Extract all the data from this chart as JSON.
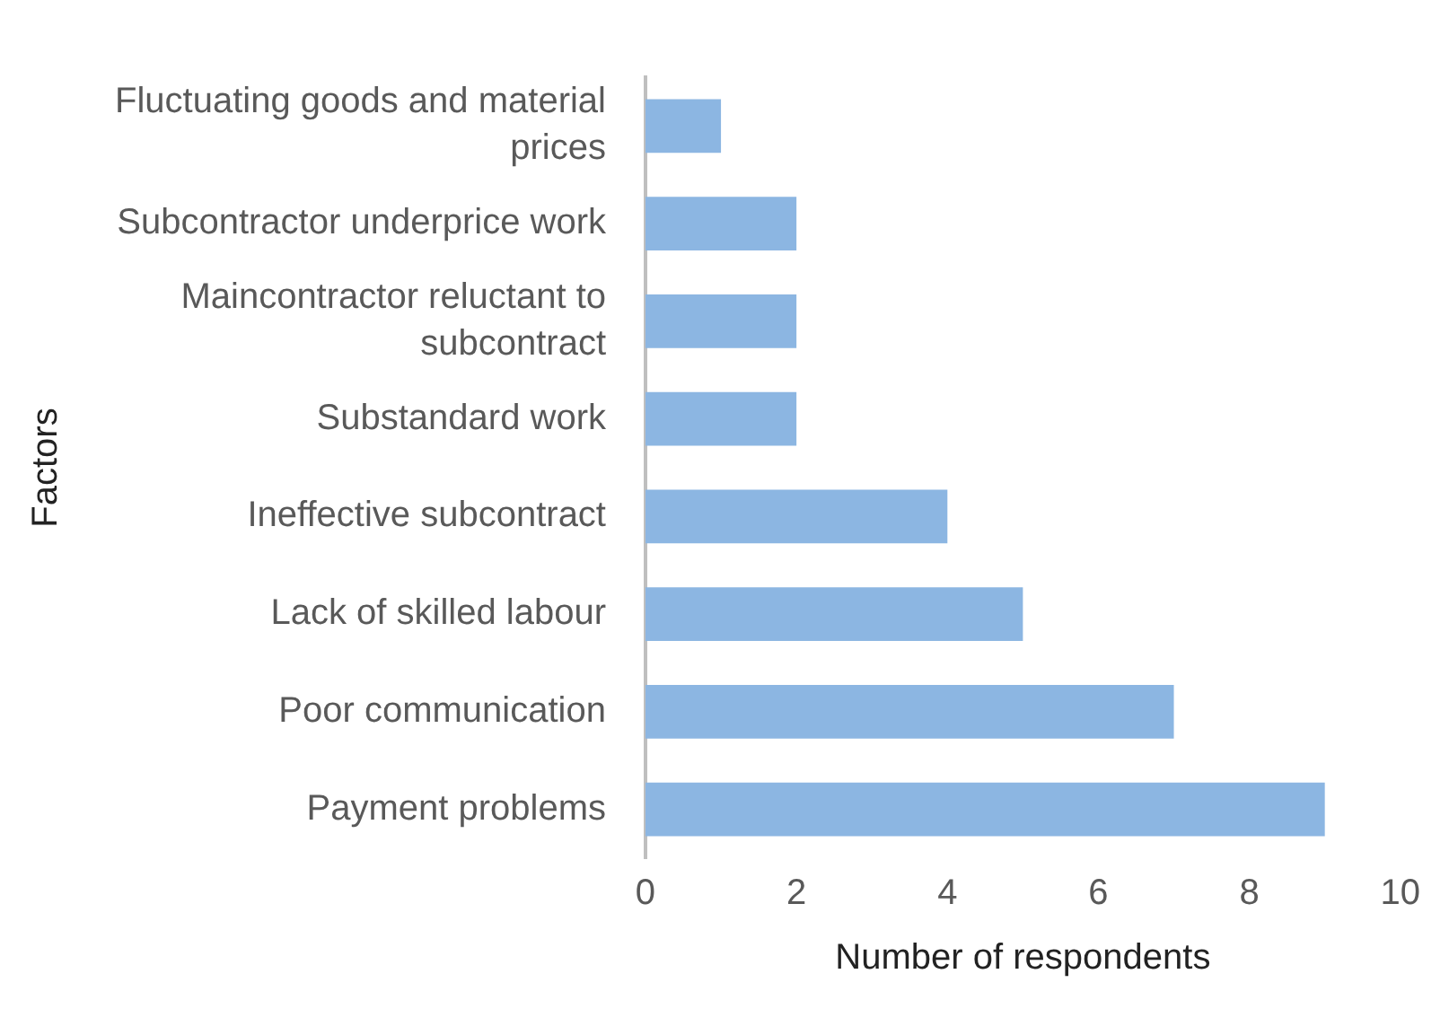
{
  "chart_data": {
    "type": "bar",
    "orientation": "horizontal",
    "xlabel": "Number of respondents",
    "ylabel": "Factors",
    "categories": [
      "Fluctuating goods and material prices",
      "Subcontractor underprice work",
      "Maincontractor reluctant to subcontract",
      "Substandard work",
      "Ineffective subcontract",
      "Lack of skilled labour",
      "Poor communication",
      "Payment problems"
    ],
    "values": [
      1,
      2,
      2,
      2,
      4,
      5,
      7,
      9
    ],
    "color": "#8cb6e2",
    "xlim": [
      0,
      10
    ],
    "xticks": [
      0,
      2,
      4,
      6,
      8,
      10
    ],
    "grid": false,
    "legend": false
  }
}
